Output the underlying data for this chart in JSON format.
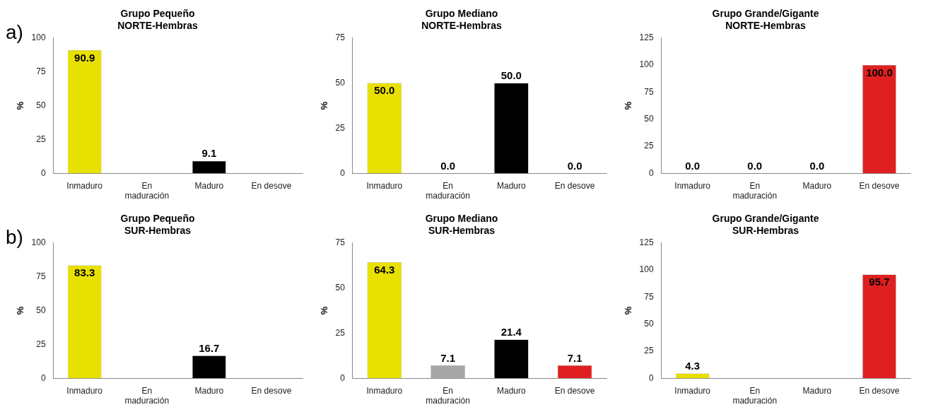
{
  "chart_data": [
    {
      "type": "bar",
      "title": "Grupo Pequeño",
      "subtitle": "NORTE-Hembras",
      "ylabel": "%",
      "annotations": [
        "a)"
      ],
      "categories": [
        "Inmaduro",
        "En maduración",
        "Maduro",
        "En desove"
      ],
      "values": [
        90.9,
        null,
        9.1,
        null
      ],
      "value_labels": [
        "90.9",
        null,
        "9.1",
        null
      ],
      "colors": [
        "#e8e000",
        "#a6a6a6",
        "#000000",
        "#e02020"
      ],
      "ylim": [
        0,
        100
      ],
      "yticks": [
        0,
        25,
        50,
        75,
        100
      ],
      "grid": false,
      "legend": false
    },
    {
      "type": "bar",
      "title": "Grupo Mediano",
      "subtitle": "NORTE-Hembras",
      "ylabel": "%",
      "categories": [
        "Inmaduro",
        "En maduración",
        "Maduro",
        "En desove"
      ],
      "values": [
        50.0,
        0.0,
        50.0,
        0.0
      ],
      "value_labels": [
        "50.0",
        "0.0",
        "50.0",
        "0.0"
      ],
      "colors": [
        "#e8e000",
        "#a6a6a6",
        "#000000",
        "#e02020"
      ],
      "ylim": [
        0,
        75
      ],
      "yticks": [
        0,
        25,
        50,
        75
      ],
      "grid": false,
      "legend": false
    },
    {
      "type": "bar",
      "title": "Grupo Grande/Gigante",
      "subtitle": "NORTE-Hembras",
      "ylabel": "%",
      "categories": [
        "Inmaduro",
        "En maduración",
        "Maduro",
        "En desove"
      ],
      "values": [
        0.0,
        0.0,
        0.0,
        100.0
      ],
      "value_labels": [
        "0.0",
        "0.0",
        "0.0",
        "100.0"
      ],
      "colors": [
        "#e8e000",
        "#a6a6a6",
        "#000000",
        "#e02020"
      ],
      "ylim": [
        0,
        125
      ],
      "yticks": [
        0,
        25,
        50,
        75,
        100,
        125
      ],
      "grid": false,
      "legend": false
    },
    {
      "type": "bar",
      "title": "Grupo Pequeño",
      "subtitle": "SUR-Hembras",
      "ylabel": "%",
      "annotations": [
        "b)"
      ],
      "categories": [
        "Inmaduro",
        "En maduración",
        "Maduro",
        "En desove"
      ],
      "values": [
        83.3,
        null,
        16.7,
        null
      ],
      "value_labels": [
        "83.3",
        null,
        "16.7",
        null
      ],
      "colors": [
        "#e8e000",
        "#a6a6a6",
        "#000000",
        "#e02020"
      ],
      "ylim": [
        0,
        100
      ],
      "yticks": [
        0,
        25,
        50,
        75,
        100
      ],
      "grid": false,
      "legend": false
    },
    {
      "type": "bar",
      "title": "Grupo Mediano",
      "subtitle": "SUR-Hembras",
      "ylabel": "%",
      "categories": [
        "Inmaduro",
        "En maduración",
        "Maduro",
        "En desove"
      ],
      "values": [
        64.3,
        7.1,
        21.4,
        7.1
      ],
      "value_labels": [
        "64.3",
        "7.1",
        "21.4",
        "7.1"
      ],
      "colors": [
        "#e8e000",
        "#a6a6a6",
        "#000000",
        "#e02020"
      ],
      "ylim": [
        0,
        75
      ],
      "yticks": [
        0,
        25,
        50,
        75
      ],
      "grid": false,
      "legend": false
    },
    {
      "type": "bar",
      "title": "Grupo Grande/Gigante",
      "subtitle": "SUR-Hembras",
      "ylabel": "%",
      "categories": [
        "Inmaduro",
        "En maduración",
        "Maduro",
        "En desove"
      ],
      "values": [
        4.3,
        null,
        null,
        95.7
      ],
      "value_labels": [
        "4.3",
        null,
        null,
        "95.7"
      ],
      "colors": [
        "#e8e000",
        "#a6a6a6",
        "#000000",
        "#e02020"
      ],
      "ylim": [
        0,
        125
      ],
      "yticks": [
        0,
        25,
        50,
        75,
        100,
        125
      ],
      "grid": false,
      "legend": false
    }
  ]
}
